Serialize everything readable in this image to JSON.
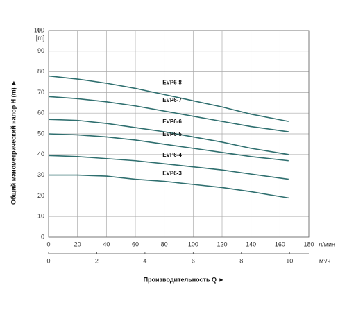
{
  "chart_data": {
    "type": "line",
    "y_unit": "H",
    "y_unit2": "[m]",
    "y_label": "Общий манометрический напор H (m) ►",
    "x_label": "Производительность Q ►",
    "x_unit": "л/мин",
    "x2_unit": "м³/ч",
    "x": [
      0,
      20,
      40,
      60,
      80,
      100,
      120,
      140,
      166
    ],
    "xlim": [
      0,
      180
    ],
    "xticks": [
      0,
      20,
      40,
      60,
      80,
      100,
      120,
      140,
      160,
      180
    ],
    "x2lim": [
      0,
      10.8
    ],
    "x2ticks": [
      0,
      2,
      4,
      6,
      8,
      10
    ],
    "ylim": [
      0,
      100
    ],
    "yticks": [
      0,
      10,
      20,
      30,
      40,
      50,
      60,
      70,
      80,
      90,
      100
    ],
    "grid": true,
    "series": [
      {
        "name": "EVP6-8",
        "color": "#2f6f6f",
        "values": [
          78,
          76.5,
          74.5,
          72,
          69,
          66,
          63,
          59.5,
          56
        ]
      },
      {
        "name": "EVP6-7",
        "color": "#2f6f6f",
        "values": [
          68,
          67,
          65.5,
          63.5,
          61,
          58.5,
          56,
          53.5,
          51
        ]
      },
      {
        "name": "EVP6-6",
        "color": "#2f6f6f",
        "values": [
          57,
          56.5,
          55,
          53,
          51,
          48.5,
          46,
          43,
          40
        ]
      },
      {
        "name": "EVP6-5",
        "color": "#2f6f6f",
        "values": [
          50,
          49.5,
          48.5,
          47,
          45,
          43,
          41,
          39,
          37
        ]
      },
      {
        "name": "EVP6-4",
        "color": "#2f6f6f",
        "values": [
          39.5,
          39,
          38,
          37,
          35.5,
          34,
          32.5,
          30.5,
          28
        ]
      },
      {
        "name": "EVP6-3",
        "color": "#2f6f6f",
        "values": [
          30,
          30,
          29.5,
          28,
          27,
          25.5,
          24,
          22,
          19
        ]
      }
    ]
  }
}
